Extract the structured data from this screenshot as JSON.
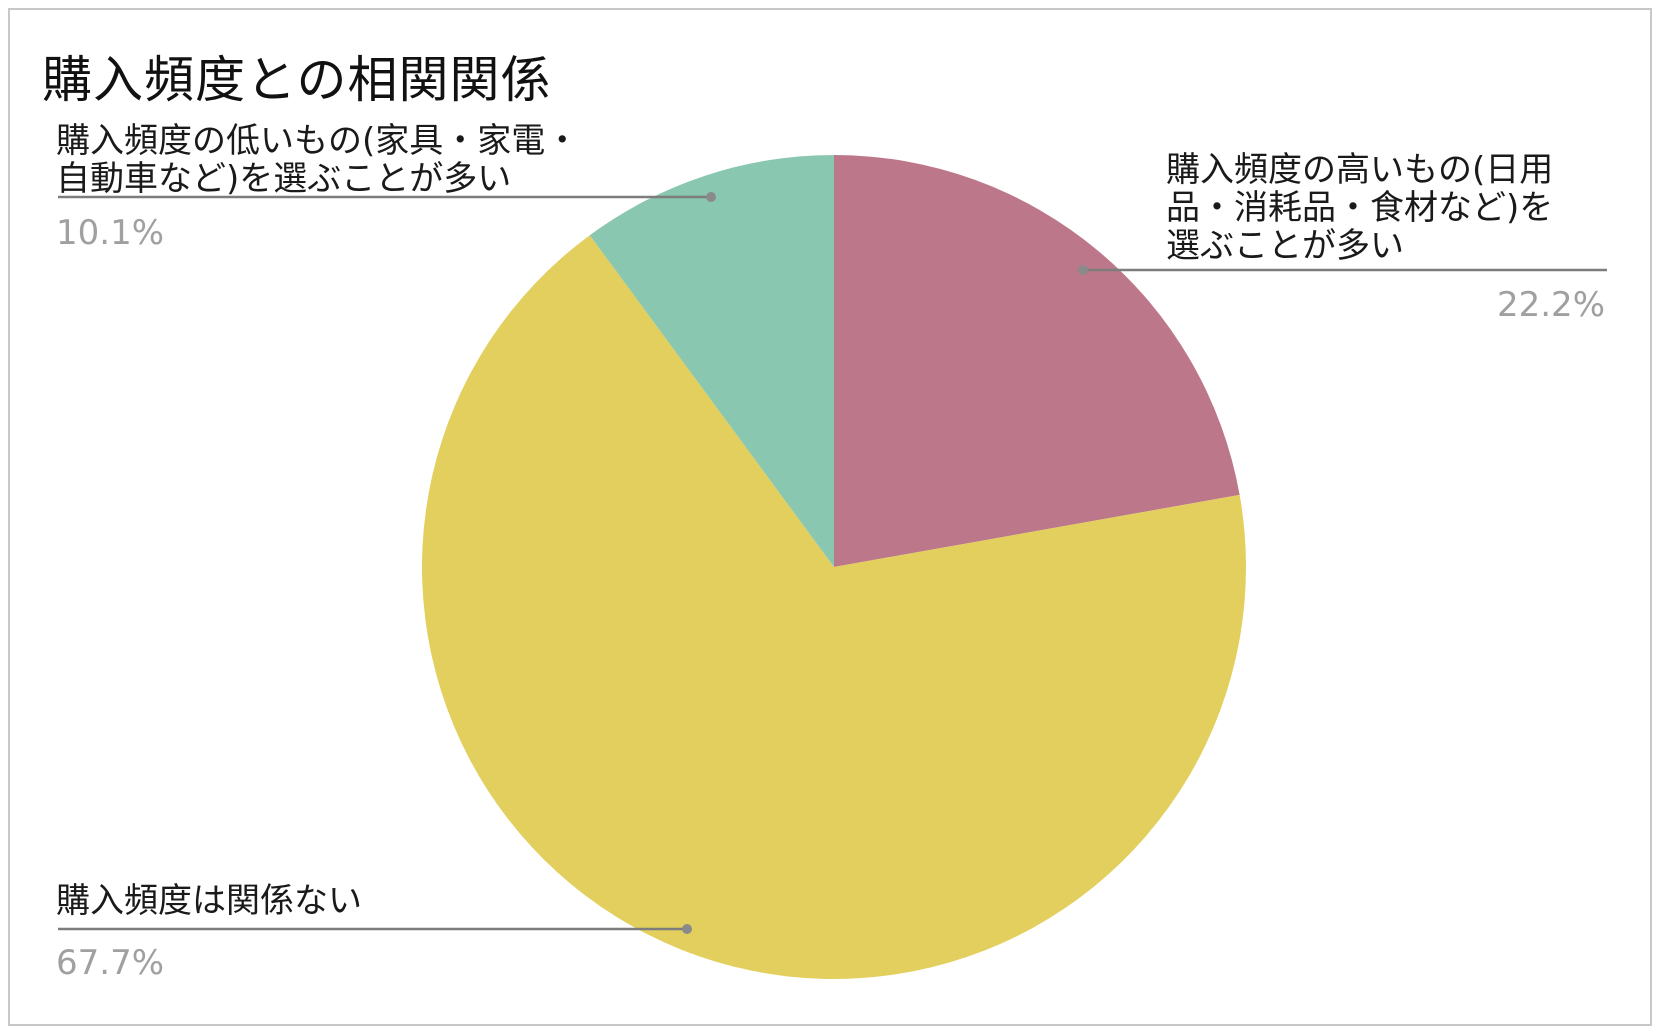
{
  "chart_data": {
    "type": "pie",
    "title": "購入頻度との相関関係",
    "slices": [
      {
        "label_lines": [
          "購入頻度の高いもの(日用",
          "品・消耗品・食材など)を",
          "選ぶことが多い"
        ],
        "value": 22.2,
        "value_label": "22.2%",
        "color": "#bd778a"
      },
      {
        "label_lines": [
          "購入頻度は関係ない"
        ],
        "value": 67.7,
        "value_label": "67.7%",
        "color": "#e2cf5d"
      },
      {
        "label_lines": [
          "購入頻度の低いもの(家具・家電・",
          "自動車など)を選ぶことが多い"
        ],
        "value": 10.1,
        "value_label": "10.1%",
        "color": "#8ac7b0"
      }
    ],
    "start_angle": "12 o'clock",
    "direction": "clockwise",
    "legend": "none"
  }
}
